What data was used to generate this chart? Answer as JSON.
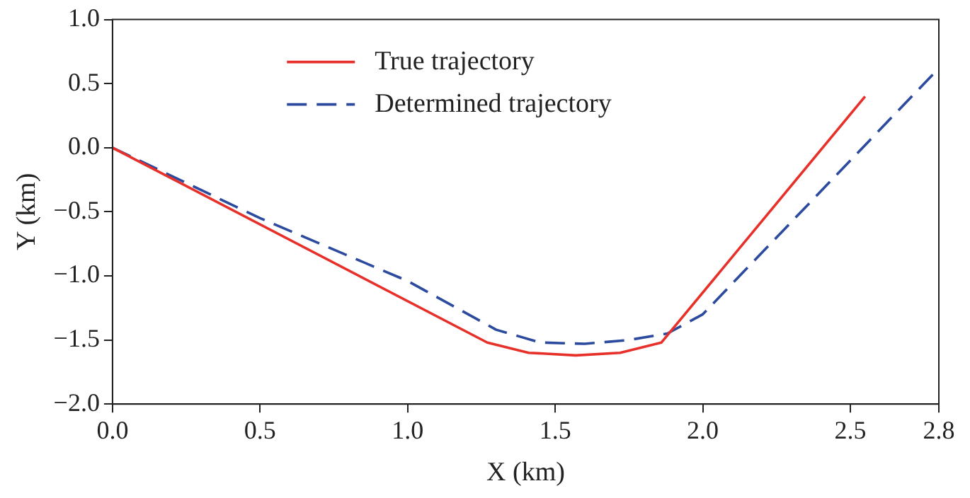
{
  "chart_data": {
    "type": "line",
    "xlabel": "X (km)",
    "ylabel": "Y (km)",
    "series": [
      {
        "name": "True trajectory",
        "color": "#e8302a",
        "line_style": "solid",
        "x": [
          0,
          1.27,
          1.41,
          1.57,
          1.72,
          1.86,
          2.55
        ],
        "values": [
          0,
          -1.52,
          -1.6,
          -1.62,
          -1.6,
          -1.52,
          0.4
        ]
      },
      {
        "name": "Determined trajectory",
        "color": "#2c4a9e",
        "line_style": "dashed",
        "x": [
          0,
          0.5,
          1.0,
          1.3,
          1.45,
          1.6,
          1.75,
          1.88,
          2.0,
          2.8
        ],
        "values": [
          0,
          -0.55,
          -1.04,
          -1.42,
          -1.52,
          -1.53,
          -1.5,
          -1.45,
          -1.3,
          0.62
        ]
      }
    ],
    "xlim": [
      0,
      2.8
    ],
    "ylim": [
      -2,
      1
    ],
    "xticks": [
      {
        "value": 0,
        "label": "0.0"
      },
      {
        "value": 0.5,
        "label": "0.5"
      },
      {
        "value": 1,
        "label": "1.0"
      },
      {
        "value": 1.5,
        "label": "1.5"
      },
      {
        "value": 2,
        "label": "2.0"
      },
      {
        "value": 2.5,
        "label": "2.5"
      },
      {
        "value": 2.8,
        "label": "2.8"
      }
    ],
    "yticks": [
      {
        "value": -2,
        "label": "−2.0"
      },
      {
        "value": -1.5,
        "label": "−1.5"
      },
      {
        "value": -1,
        "label": "−1.0"
      },
      {
        "value": -0.5,
        "label": "−0.5"
      },
      {
        "value": 0,
        "label": "0.0"
      },
      {
        "value": 0.5,
        "label": "0.5"
      },
      {
        "value": 1,
        "label": "1.0"
      }
    ],
    "grid": false,
    "legend": "top",
    "marker": "none"
  }
}
